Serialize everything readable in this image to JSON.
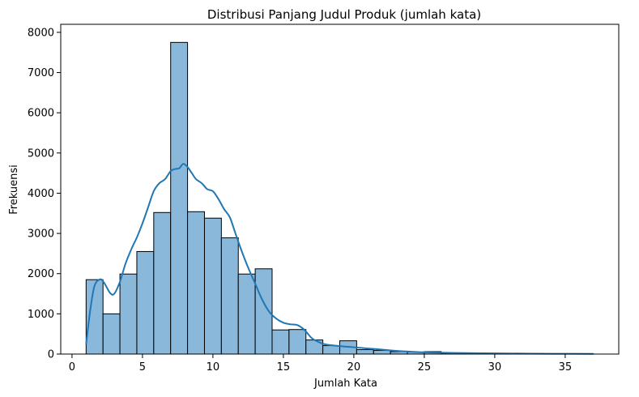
{
  "chart_data": {
    "type": "bar",
    "title": "Distribusi Panjang Judul Produk (jumlah kata)",
    "xlabel": "Jumlah Kata",
    "ylabel": "Frekuensi",
    "xlim": [
      -0.8,
      38.8
    ],
    "ylim": [
      0,
      8200
    ],
    "xticks": [
      0,
      5,
      10,
      15,
      20,
      25,
      30,
      35
    ],
    "yticks": [
      0,
      1000,
      2000,
      3000,
      4000,
      5000,
      6000,
      7000,
      8000
    ],
    "bins": {
      "start": 1,
      "width": 1.2,
      "counts": [
        1850,
        1000,
        1990,
        2550,
        3520,
        7750,
        3540,
        3380,
        2890,
        1990,
        2120,
        600,
        610,
        350,
        210,
        330,
        110,
        90,
        60,
        50,
        60,
        20,
        15,
        10,
        10,
        10,
        15,
        10,
        5,
        5
      ]
    },
    "kde": {
      "x": [
        1.0,
        1.3,
        1.6,
        2.0,
        2.3,
        2.7,
        3.0,
        3.4,
        3.8,
        4.2,
        4.6,
        5.0,
        5.4,
        5.8,
        6.2,
        6.6,
        7.0,
        7.3,
        7.6,
        7.9,
        8.2,
        8.5,
        8.8,
        9.2,
        9.6,
        10.0,
        10.4,
        10.8,
        11.2,
        11.6,
        12.0,
        12.5,
        13.0,
        13.5,
        14.0,
        14.5,
        15.0,
        15.5,
        16.0,
        16.5,
        17.0,
        17.5,
        18.0,
        19.0,
        20.0,
        21.0,
        22.0,
        23.0,
        24.0,
        25.0,
        26.0,
        28.0,
        30.0,
        32.0,
        34.0,
        37.0
      ],
      "y": [
        250,
        1100,
        1700,
        1860,
        1760,
        1520,
        1500,
        1800,
        2250,
        2600,
        2900,
        3250,
        3650,
        4050,
        4250,
        4350,
        4550,
        4600,
        4620,
        4730,
        4650,
        4500,
        4350,
        4250,
        4100,
        4050,
        3850,
        3600,
        3400,
        3000,
        2600,
        2150,
        1750,
        1350,
        1050,
        880,
        780,
        740,
        720,
        600,
        400,
        300,
        240,
        200,
        170,
        140,
        110,
        80,
        60,
        45,
        35,
        25,
        18,
        12,
        8,
        5
      ]
    },
    "bar_color": "#8ab8db",
    "line_color": "#1f77b4",
    "grid": false
  }
}
